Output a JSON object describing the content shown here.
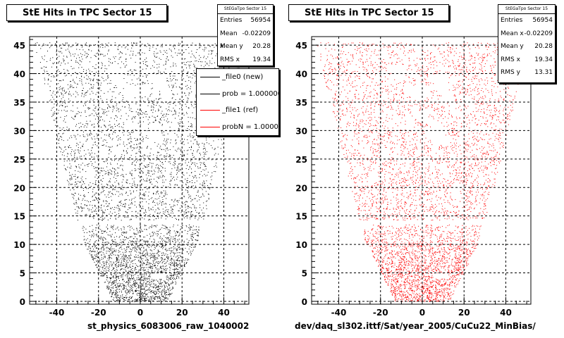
{
  "chart_data": [
    {
      "type": "scatter",
      "title": "StE Hits in TPC Sector 15",
      "xlabel": "st_physics_6083006_raw_1040002",
      "marker_color": "#000000",
      "xlim": [
        -53,
        52
      ],
      "ylim": [
        -0.5,
        46.5
      ],
      "xticks": [
        "-40",
        "-20",
        "0",
        "20",
        "40"
      ],
      "yticks": [
        "0",
        "5",
        "10",
        "15",
        "20",
        "25",
        "30",
        "35",
        "40",
        "45"
      ],
      "grid": true,
      "stats": {
        "name": "StEGaTpo Sector 15",
        "rows": [
          {
            "label": "Entries",
            "value": "56954"
          },
          {
            "label": "Mean x",
            "value": "-0.02209"
          },
          {
            "label": "Mean y",
            "value": "20.28"
          },
          {
            "label": "RMS x",
            "value": "19.34"
          }
        ]
      },
      "legend": {
        "placement": "top-right",
        "entries": [
          {
            "label": "_file0 (new)",
            "color": "#000000"
          },
          {
            "label": "prob = 1.000000",
            "color": "#000000"
          },
          {
            "label": "_file1 (ref)",
            "color": "#ff0000"
          },
          {
            "label": "probN = 1.000000",
            "color": "#ff0000"
          }
        ]
      }
    },
    {
      "type": "scatter",
      "title": "StE Hits in TPC Sector 15",
      "xlabel": "dev/daq_sl302.ittf/Sat/year_2005/CuCu22_MinBias/",
      "marker_color": "#ff0000",
      "xlim": [
        -53,
        52
      ],
      "ylim": [
        -0.5,
        46.5
      ],
      "xticks": [
        "-40",
        "-20",
        "0",
        "20",
        "40"
      ],
      "yticks": [
        "0",
        "5",
        "10",
        "15",
        "20",
        "25",
        "30",
        "35",
        "40",
        "45"
      ],
      "grid": true,
      "stats": {
        "name": "StEGaTpo Sector 15",
        "rows": [
          {
            "label": "Entries",
            "value": "56954"
          },
          {
            "label": "Mean x",
            "value": "-0.02209"
          },
          {
            "label": "Mean y",
            "value": "20.28"
          },
          {
            "label": "RMS x",
            "value": "19.34"
          },
          {
            "label": "RMS y",
            "value": "13.31"
          }
        ]
      }
    }
  ]
}
